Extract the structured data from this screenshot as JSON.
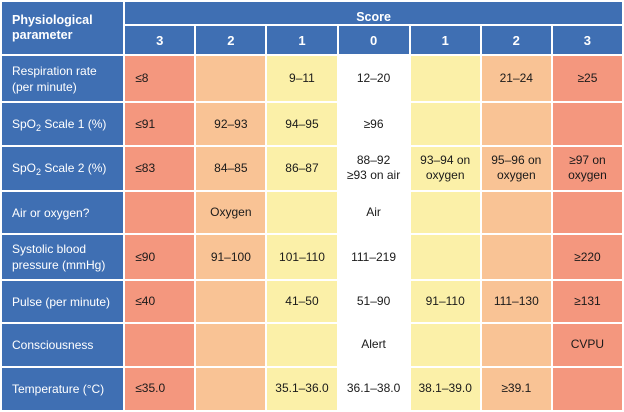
{
  "header": {
    "parameter_label": [
      "Physiological",
      "parameter"
    ],
    "score_label": "Score",
    "score_columns": [
      "3",
      "2",
      "1",
      "0",
      "1",
      "2",
      "3"
    ]
  },
  "colors": {
    "header_blue": "#3f6fb3",
    "score_3": "#f4977e",
    "score_2": "#f9c395",
    "score_1": "#fbf0a8",
    "score_0": "#ffffff"
  },
  "rows": [
    {
      "param": [
        "Respiration rate",
        "(per minute)"
      ],
      "cells": [
        "≤8",
        "",
        "9–11",
        "12–20",
        "",
        "21–24",
        "≥25"
      ]
    },
    {
      "param_main": "SpO",
      "param_sub": "2",
      "param_rest": " Scale 1 (%)",
      "cells": [
        "≤91",
        "92–93",
        "94–95",
        "≥96",
        "",
        "",
        ""
      ]
    },
    {
      "param_main": "SpO",
      "param_sub": "2",
      "param_rest": " Scale 2 (%)",
      "cells": [
        "≤83",
        "84–85",
        "86–87",
        "88–92\n≥93 on air",
        "93–94 on\noxygen",
        "95–96 on\noxygen",
        "≥97 on\noxygen"
      ]
    },
    {
      "param": [
        "Air or oxygen?"
      ],
      "cells": [
        "",
        "Oxygen",
        "",
        "Air",
        "",
        "",
        ""
      ]
    },
    {
      "param": [
        "Systolic blood",
        "pressure (mmHg)"
      ],
      "cells": [
        "≤90",
        "91–100",
        "101–110",
        "111–219",
        "",
        "",
        "≥220"
      ]
    },
    {
      "param": [
        "Pulse (per minute)"
      ],
      "cells": [
        "≤40",
        "",
        "41–50",
        "51–90",
        "91–110",
        "111–130",
        "≥131"
      ]
    },
    {
      "param": [
        "Consciousness"
      ],
      "cells": [
        "",
        "",
        "",
        "Alert",
        "",
        "",
        "CVPU"
      ]
    },
    {
      "param": [
        "Temperature (°C)"
      ],
      "cells": [
        "≤35.0",
        "",
        "35.1–36.0",
        "36.1–38.0",
        "38.1–39.0",
        "≥39.1",
        ""
      ]
    }
  ]
}
